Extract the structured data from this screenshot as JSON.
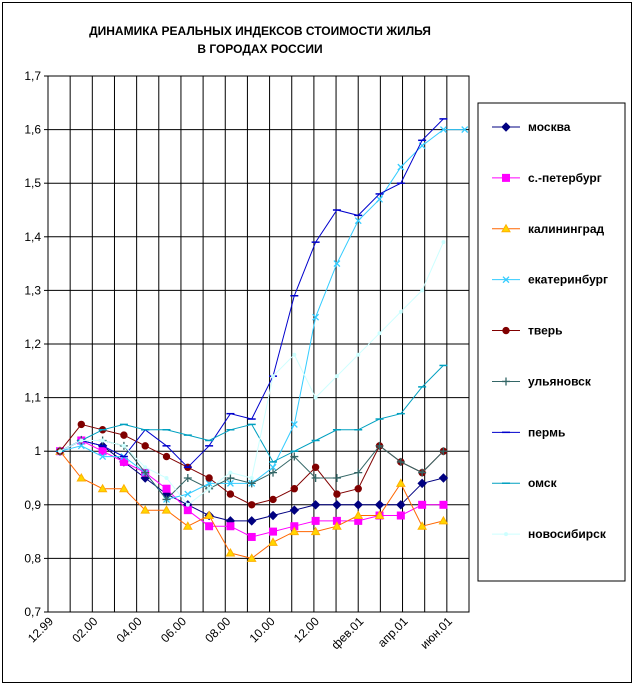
{
  "chart_data": {
    "type": "line",
    "title_lines": [
      "ДИНАМИКА РЕАЛЬНЫХ ИНДЕКСОВ СТОИМОСТИ ЖИЛЬЯ",
      "В ГОРОДАХ РОССИИ"
    ],
    "xlabel": "",
    "ylabel": "",
    "ylim": [
      0.7,
      1.7
    ],
    "yticks": [
      "0,7",
      "0,8",
      "0,9",
      "1",
      "1,1",
      "1,2",
      "1,3",
      "1,4",
      "1,5",
      "1,6",
      "1,7"
    ],
    "x_count": 20,
    "xtick_labels": [
      "12.99",
      "02.00",
      "04.00",
      "06.00",
      "08.00",
      "10.00",
      "12.00",
      "фев.01",
      "апр.01",
      "июн.01"
    ],
    "xtick_positions": [
      0,
      2,
      4,
      6,
      8,
      10,
      12,
      14,
      16,
      18
    ],
    "grid": true,
    "legend_position": "right",
    "series": [
      {
        "name": "москва",
        "color": "#000080",
        "marker": "diamond",
        "values": [
          1.0,
          1.02,
          1.01,
          0.98,
          0.95,
          0.92,
          0.9,
          0.88,
          0.87,
          0.87,
          0.88,
          0.89,
          0.9,
          0.9,
          0.9,
          0.9,
          0.9,
          0.94,
          0.95
        ]
      },
      {
        "name": "с.-петербург",
        "color": "#FF00FF",
        "marker": "square",
        "values": [
          1.0,
          1.02,
          1.0,
          0.98,
          0.96,
          0.93,
          0.89,
          0.86,
          0.86,
          0.84,
          0.85,
          0.86,
          0.87,
          0.87,
          0.87,
          0.88,
          0.88,
          0.9,
          0.9
        ]
      },
      {
        "name": "калининград",
        "color": "#FF6600",
        "marker": "triangle",
        "values": [
          1.0,
          0.95,
          0.93,
          0.93,
          0.89,
          0.89,
          0.86,
          0.88,
          0.81,
          0.8,
          0.83,
          0.85,
          0.85,
          0.86,
          0.88,
          0.88,
          0.94,
          0.86,
          0.87
        ]
      },
      {
        "name": "екатеринбург",
        "color": "#33CCFF",
        "marker": "x",
        "values": [
          1.0,
          1.01,
          0.99,
          0.99,
          0.96,
          0.91,
          0.92,
          0.94,
          0.94,
          0.94,
          0.97,
          1.05,
          1.25,
          1.35,
          1.43,
          1.47,
          1.53,
          1.57,
          1.6,
          1.6
        ]
      },
      {
        "name": "тверь",
        "color": "#800000",
        "marker": "circle",
        "values": [
          1.0,
          1.05,
          1.04,
          1.03,
          1.01,
          0.99,
          0.97,
          0.95,
          0.92,
          0.9,
          0.91,
          0.93,
          0.97,
          0.92,
          0.93,
          1.01,
          0.98,
          0.96,
          1.0
        ]
      },
      {
        "name": "ульяновск",
        "color": "#336666",
        "marker": "plus",
        "values": [
          1.0,
          1.02,
          1.02,
          1.01,
          0.96,
          0.91,
          0.95,
          0.93,
          0.95,
          0.94,
          0.96,
          0.99,
          0.95,
          0.95,
          0.96,
          1.01,
          0.98,
          0.96,
          1.0
        ]
      },
      {
        "name": "пермь",
        "color": "#0000CC",
        "marker": "dash",
        "values": [
          1.0,
          1.02,
          1.01,
          0.99,
          1.04,
          1.01,
          0.97,
          1.01,
          1.07,
          1.06,
          1.14,
          1.29,
          1.39,
          1.45,
          1.44,
          1.48,
          1.5,
          1.58,
          1.62
        ]
      },
      {
        "name": "омск",
        "color": "#00A0C0",
        "marker": "dash",
        "values": [
          1.0,
          1.02,
          1.04,
          1.05,
          1.04,
          1.04,
          1.03,
          1.02,
          1.04,
          1.05,
          0.98,
          1.0,
          1.02,
          1.04,
          1.04,
          1.06,
          1.07,
          1.12,
          1.16
        ]
      },
      {
        "name": "новосибирск",
        "color": "#CCFFFF",
        "marker": "dot",
        "values": [
          1.0,
          1.02,
          1.02,
          1.01,
          0.97,
          0.95,
          0.9,
          0.93,
          0.96,
          0.95,
          1.14,
          1.18,
          1.1,
          1.14,
          1.18,
          1.22,
          1.26,
          1.3,
          1.39
        ]
      }
    ]
  }
}
